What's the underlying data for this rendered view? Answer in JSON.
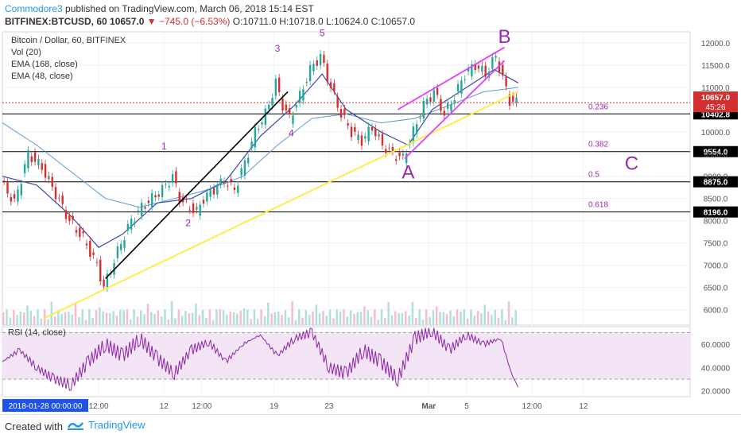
{
  "header": {
    "author": "Commodore3",
    "published": " published on TradingView.com, March 06, 2018 15:14 EST",
    "symbol": "BITFINEX:BTCUSD, 60",
    "last": "10657.0",
    "change_arrow": "▼",
    "change": "−745.0 (−6.53%)",
    "ohlc": "O:10711.0 H:10718.0 L:10624.0 C:10657.0"
  },
  "legend": {
    "title": "Bitcoin / Dollar, 60, BITFINEX",
    "vol": "Vol (20)",
    "ema1": "EMA (168, close)",
    "ema2": "EMA (48, close)"
  },
  "rsi_label": "RSI (14, close)",
  "footer": {
    "made": "Created with",
    "brand": "TradingView"
  },
  "colors": {
    "accent": "#2196f3",
    "down": "#d32f2f",
    "up": "#26a69a",
    "wedge": "#e040fb",
    "trend_yellow": "#ffeb3b",
    "rsi": "#8e24aa",
    "label_purple": "#9c27b0"
  },
  "chart_data": {
    "type": "line",
    "symbol": "BTCUSD",
    "timeframe": "60",
    "x_ticks": [
      "12:00",
      "12",
      "12:00",
      "19",
      "23",
      "Mar",
      "5",
      "12:00",
      "12"
    ],
    "time_badge": "2018-01-28 00:00:00",
    "y_ticks": [
      "12000.0",
      "11500.0",
      "11000.0",
      "10500.0",
      "10000.0",
      "9500.0",
      "9000.0",
      "8500.0",
      "8000.0",
      "7500.0",
      "7000.0",
      "6500.0",
      "6000.0"
    ],
    "ylim": [
      5650,
      12250
    ],
    "rsi_ticks": [
      "60.0000",
      "40.0000",
      "20.0000"
    ],
    "rsi_ylim": [
      15,
      75
    ],
    "rsi_band": [
      30,
      70
    ],
    "fib_levels": [
      {
        "ratio": "0.236",
        "price": "10402.8",
        "value": 10402.8
      },
      {
        "ratio": "0.382",
        "price": "9554.0",
        "value": 9554
      },
      {
        "ratio": "0.5",
        "price": "8875.0",
        "value": 8875
      },
      {
        "ratio": "0.618",
        "price": "8196.0",
        "value": 8196
      }
    ],
    "last_price": {
      "label": "10657.0",
      "value": 10657,
      "countdown": "45:26"
    },
    "wave_labels": [
      "1",
      "2",
      "3",
      "4",
      "5",
      "A",
      "B",
      "C"
    ],
    "price_path": [
      [
        0,
        8900
      ],
      [
        4,
        8400
      ],
      [
        8,
        9500
      ],
      [
        12,
        9200
      ],
      [
        16,
        8600
      ],
      [
        20,
        8000
      ],
      [
        24,
        7600
      ],
      [
        28,
        7000
      ],
      [
        30,
        6500
      ],
      [
        32,
        6900
      ],
      [
        35,
        7500
      ],
      [
        38,
        8000
      ],
      [
        41,
        8300
      ],
      [
        44,
        8500
      ],
      [
        47,
        8700
      ],
      [
        50,
        9000
      ],
      [
        52,
        8500
      ],
      [
        55,
        8300
      ],
      [
        57,
        8200
      ],
      [
        59,
        8500
      ],
      [
        62,
        8700
      ],
      [
        65,
        8900
      ],
      [
        68,
        8700
      ],
      [
        71,
        9300
      ],
      [
        74,
        10000
      ],
      [
        77,
        10400
      ],
      [
        80,
        11100
      ],
      [
        82,
        10600
      ],
      [
        84,
        10300
      ],
      [
        87,
        10800
      ],
      [
        90,
        11400
      ],
      [
        93,
        11700
      ],
      [
        96,
        11000
      ],
      [
        99,
        10400
      ],
      [
        102,
        10000
      ],
      [
        105,
        9800
      ],
      [
        108,
        10100
      ],
      [
        111,
        9700
      ],
      [
        114,
        9500
      ],
      [
        117,
        9400
      ],
      [
        120,
        10000
      ],
      [
        123,
        10600
      ],
      [
        126,
        10900
      ],
      [
        129,
        10400
      ],
      [
        132,
        10800
      ],
      [
        135,
        11300
      ],
      [
        138,
        11500
      ],
      [
        141,
        11300
      ],
      [
        144,
        11700
      ],
      [
        146,
        11200
      ],
      [
        148,
        10700
      ],
      [
        150,
        10657
      ]
    ],
    "ema48": [
      [
        0,
        9000
      ],
      [
        10,
        8800
      ],
      [
        20,
        8100
      ],
      [
        28,
        7400
      ],
      [
        35,
        7700
      ],
      [
        45,
        8400
      ],
      [
        55,
        8500
      ],
      [
        65,
        8900
      ],
      [
        75,
        9900
      ],
      [
        85,
        10600
      ],
      [
        93,
        11300
      ],
      [
        100,
        10500
      ],
      [
        110,
        10000
      ],
      [
        118,
        9700
      ],
      [
        125,
        10500
      ],
      [
        135,
        11000
      ],
      [
        143,
        11400
      ],
      [
        150,
        11100
      ]
    ],
    "ema168": [
      [
        0,
        10200
      ],
      [
        10,
        9700
      ],
      [
        20,
        9100
      ],
      [
        30,
        8500
      ],
      [
        40,
        8300
      ],
      [
        50,
        8500
      ],
      [
        60,
        8700
      ],
      [
        70,
        9000
      ],
      [
        80,
        9700
      ],
      [
        90,
        10300
      ],
      [
        100,
        10400
      ],
      [
        110,
        10200
      ],
      [
        120,
        10300
      ],
      [
        130,
        10600
      ],
      [
        140,
        10900
      ],
      [
        150,
        11000
      ]
    ],
    "rsi": [
      [
        0,
        45
      ],
      [
        5,
        55
      ],
      [
        10,
        40
      ],
      [
        15,
        30
      ],
      [
        20,
        25
      ],
      [
        25,
        45
      ],
      [
        30,
        60
      ],
      [
        35,
        50
      ],
      [
        40,
        65
      ],
      [
        45,
        48
      ],
      [
        50,
        35
      ],
      [
        55,
        55
      ],
      [
        60,
        62
      ],
      [
        65,
        45
      ],
      [
        70,
        60
      ],
      [
        75,
        68
      ],
      [
        80,
        50
      ],
      [
        85,
        65
      ],
      [
        90,
        70
      ],
      [
        95,
        40
      ],
      [
        100,
        35
      ],
      [
        105,
        55
      ],
      [
        110,
        45
      ],
      [
        115,
        30
      ],
      [
        120,
        65
      ],
      [
        125,
        72
      ],
      [
        130,
        55
      ],
      [
        135,
        68
      ],
      [
        140,
        60
      ],
      [
        145,
        65
      ],
      [
        148,
        35
      ],
      [
        150,
        23
      ]
    ],
    "trendlines": [
      {
        "name": "black-trendline",
        "color": "#000000",
        "from": [
          30,
          6700
        ],
        "to": [
          83,
          10900
        ]
      },
      {
        "name": "yellow-trendline",
        "color": "#ffeb3b",
        "from": [
          12,
          5800
        ],
        "to": [
          150,
          10900
        ]
      },
      {
        "name": "wedge-upper",
        "color": "#e040fb",
        "from": [
          115,
          10500
        ],
        "to": [
          146,
          11900
        ]
      },
      {
        "name": "wedge-lower",
        "color": "#e040fb",
        "from": [
          117,
          9400
        ],
        "to": [
          146,
          11600
        ]
      }
    ]
  }
}
